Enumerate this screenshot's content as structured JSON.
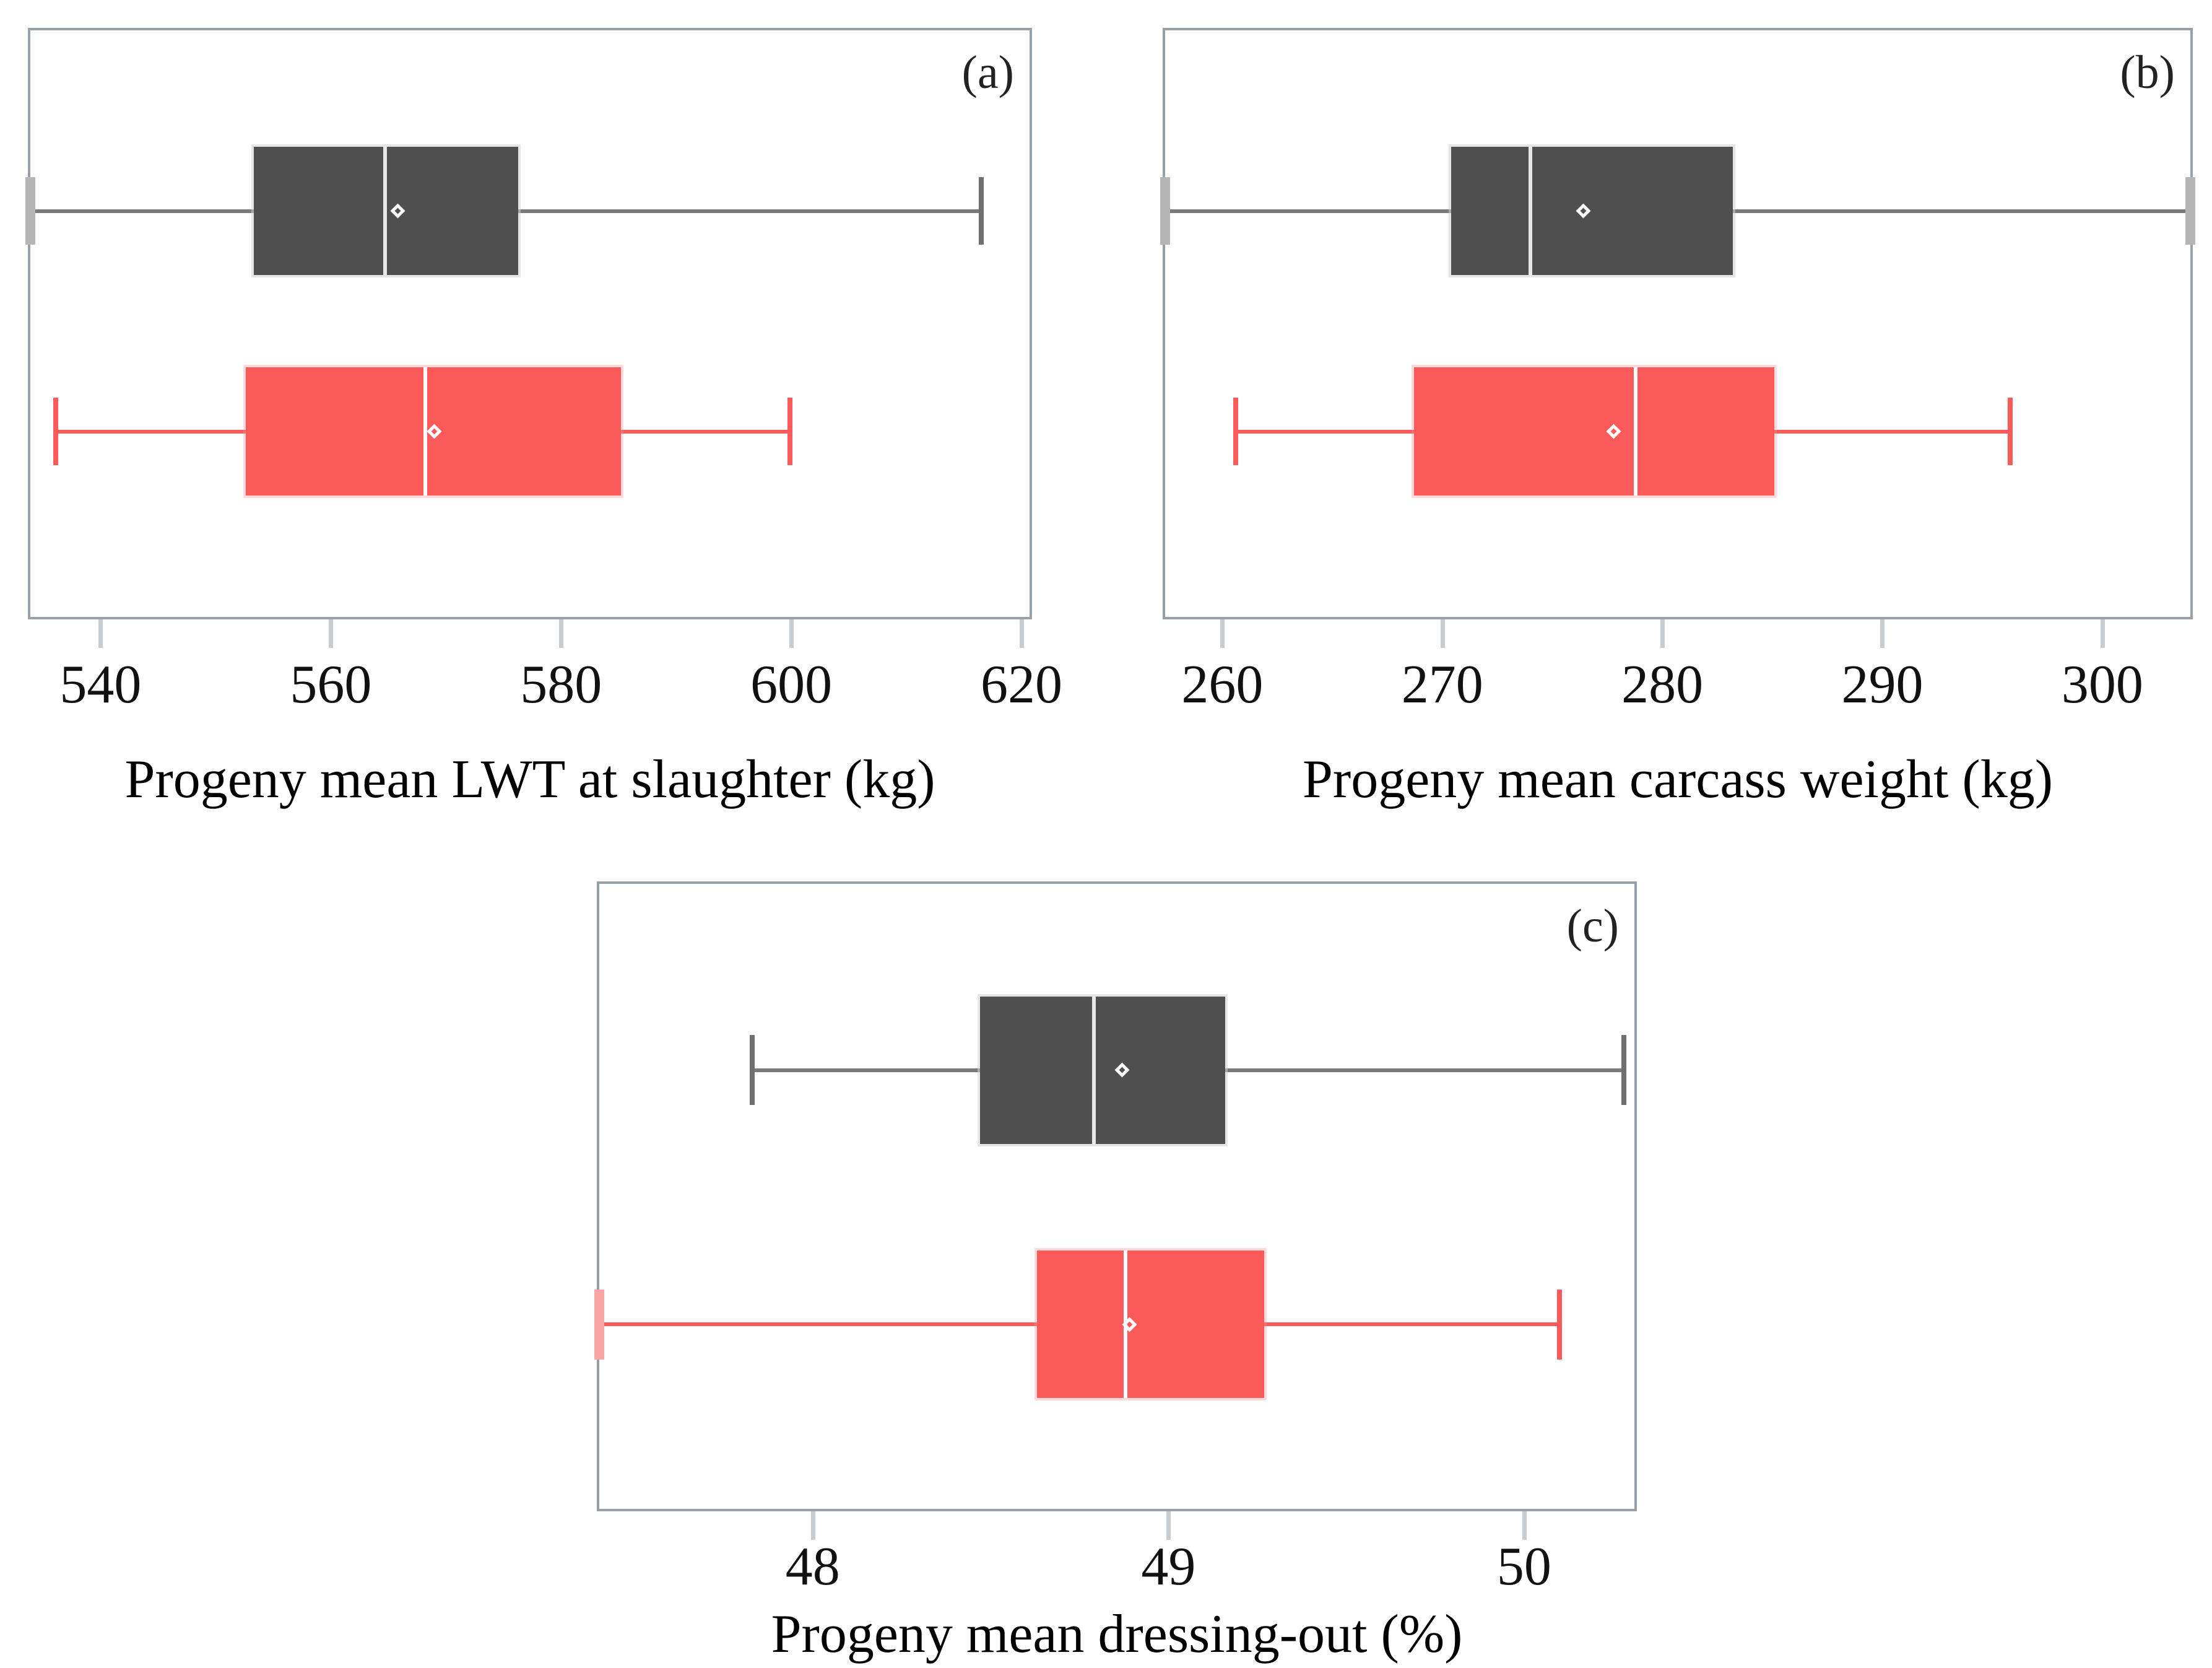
{
  "styles": {
    "panel_border": "#99a1a7",
    "tick_mark": "#c8cdd1",
    "background": "#ffffff",
    "text": "#000000",
    "mean_marker": "#ffffff"
  },
  "chart_data": [
    {
      "type": "boxplot",
      "orientation": "horizontal",
      "panel_label": "(a)",
      "xlabel": "Progeny mean LWT at slaughter (kg)",
      "x_ticks": [
        540,
        560,
        580,
        600,
        620
      ],
      "x_range": [
        533.9,
        620.7
      ],
      "grid": false,
      "legend": "none",
      "series": [
        {
          "name": "group-1-dark-grey",
          "box_color": "#4f4f4f",
          "whisker_color": "#7a7a7a",
          "cap_color": "#6f6f6f",
          "cap_clipped_color": "#b5b5b5",
          "median_color": "#e8e8e8",
          "halo_color": "rgba(210,210,210,0.55)",
          "whisker_low": 533.9,
          "q1": 553.3,
          "median": 564.7,
          "mean": 565.8,
          "q3": 576.3,
          "whisker_high": 616.5,
          "whisker_low_clipped": true,
          "whisker_high_clipped": false
        },
        {
          "name": "group-2-red",
          "box_color": "#fb5a5a",
          "whisker_color": "#fb5a5a",
          "cap_color": "#fb5a5a",
          "cap_clipped_color": "#fba4a4",
          "median_color": "#ffffff",
          "halo_color": "rgba(252,150,150,0.35)",
          "whisker_low": 536.1,
          "q1": 552.6,
          "median": 568.2,
          "mean": 569.0,
          "q3": 585.2,
          "whisker_high": 599.9,
          "whisker_low_clipped": false,
          "whisker_high_clipped": false
        }
      ]
    },
    {
      "type": "boxplot",
      "orientation": "horizontal",
      "panel_label": "(b)",
      "xlabel": "Progeny mean carcass weight (kg)",
      "x_ticks": [
        260,
        270,
        280,
        290,
        300
      ],
      "x_range": [
        257.4,
        304.0
      ],
      "grid": false,
      "legend": "none",
      "series": [
        {
          "name": "group-1-dark-grey",
          "box_color": "#4f4f4f",
          "whisker_color": "#7a7a7a",
          "cap_color": "#6f6f6f",
          "cap_clipped_color": "#b5b5b5",
          "median_color": "#e8e8e8",
          "halo_color": "rgba(210,210,210,0.55)",
          "whisker_low": 257.4,
          "q1": 270.4,
          "median": 274.0,
          "mean": 276.4,
          "q3": 283.2,
          "whisker_high": 304.0,
          "whisker_low_clipped": true,
          "whisker_high_clipped": true
        },
        {
          "name": "group-2-red",
          "box_color": "#fb5a5a",
          "whisker_color": "#fb5a5a",
          "cap_color": "#fb5a5a",
          "cap_clipped_color": "#fba4a4",
          "median_color": "#ffffff",
          "halo_color": "rgba(252,150,150,0.35)",
          "whisker_low": 260.6,
          "q1": 268.7,
          "median": 278.8,
          "mean": 277.8,
          "q3": 285.1,
          "whisker_high": 295.8,
          "whisker_low_clipped": false,
          "whisker_high_clipped": false
        }
      ]
    },
    {
      "type": "boxplot",
      "orientation": "horizontal",
      "panel_label": "(c)",
      "xlabel": "Progeny mean dressing-out (%)",
      "x_ticks": [
        48,
        49,
        50
      ],
      "x_range": [
        47.4,
        50.31
      ],
      "grid": false,
      "legend": "none",
      "series": [
        {
          "name": "group-1-dark-grey",
          "box_color": "#4f4f4f",
          "whisker_color": "#7a7a7a",
          "cap_color": "#6f6f6f",
          "cap_clipped_color": "#b5b5b5",
          "median_color": "#e8e8e8",
          "halo_color": "rgba(210,210,210,0.55)",
          "whisker_low": 47.83,
          "q1": 48.47,
          "median": 48.79,
          "mean": 48.87,
          "q3": 49.16,
          "whisker_high": 50.28,
          "whisker_low_clipped": false,
          "whisker_high_clipped": false
        },
        {
          "name": "group-2-red",
          "box_color": "#fb5a5a",
          "whisker_color": "#fb5a5a",
          "cap_color": "#fb5a5a",
          "cap_clipped_color": "#fba4a4",
          "median_color": "#ffffff",
          "halo_color": "rgba(252,150,150,0.35)",
          "whisker_low": 47.4,
          "q1": 48.63,
          "median": 48.88,
          "mean": 48.89,
          "q3": 49.27,
          "whisker_high": 50.1,
          "whisker_low_clipped": true,
          "whisker_high_clipped": false
        }
      ]
    }
  ]
}
